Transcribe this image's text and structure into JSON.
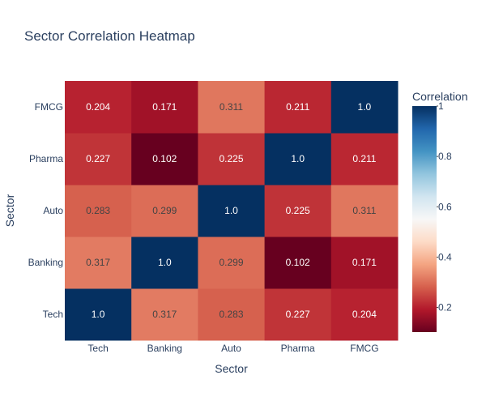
{
  "chart_data": {
    "type": "heatmap",
    "title": "Sector Correlation Heatmap",
    "xlabel": "Sector",
    "ylabel": "Sector",
    "x_categories": [
      "Tech",
      "Banking",
      "Auto",
      "Pharma",
      "FMCG"
    ],
    "y_categories": [
      "Tech",
      "Banking",
      "Auto",
      "Pharma",
      "FMCG"
    ],
    "z": [
      [
        1.0,
        0.317,
        0.283,
        0.227,
        0.204
      ],
      [
        0.317,
        1.0,
        0.299,
        0.102,
        0.171
      ],
      [
        0.283,
        0.299,
        1.0,
        0.225,
        0.311
      ],
      [
        0.227,
        0.102,
        0.225,
        1.0,
        0.211
      ],
      [
        0.204,
        0.171,
        0.311,
        0.211,
        1.0
      ]
    ],
    "cell_text": [
      [
        "1.0",
        "0.317",
        "0.283",
        "0.227",
        "0.204"
      ],
      [
        "0.317",
        "1.0",
        "0.299",
        "0.102",
        "0.171"
      ],
      [
        "0.283",
        "0.299",
        "1.0",
        "0.225",
        "0.311"
      ],
      [
        "0.227",
        "0.102",
        "0.225",
        "1.0",
        "0.211"
      ],
      [
        "0.204",
        "0.171",
        "0.311",
        "0.211",
        "1.0"
      ]
    ],
    "zmin": 0.102,
    "zmax": 1.0,
    "colorscale": "RdBu",
    "colorscale_stops": [
      "#67001f",
      "#b2182b",
      "#d6604d",
      "#f4a582",
      "#fddbc7",
      "#f7f7f7",
      "#d1e5f0",
      "#92c5de",
      "#4393c3",
      "#2166ac",
      "#053061"
    ],
    "colorbar": {
      "title": "Correlation",
      "ticks": [
        0.2,
        0.4,
        0.6,
        0.8,
        1
      ],
      "tick_labels": [
        "0.2",
        "0.4",
        "0.6",
        "0.8",
        "1"
      ]
    },
    "cell_text_colors": {
      "dark_bg": "#ffffff",
      "light_bg": "#444444"
    }
  }
}
